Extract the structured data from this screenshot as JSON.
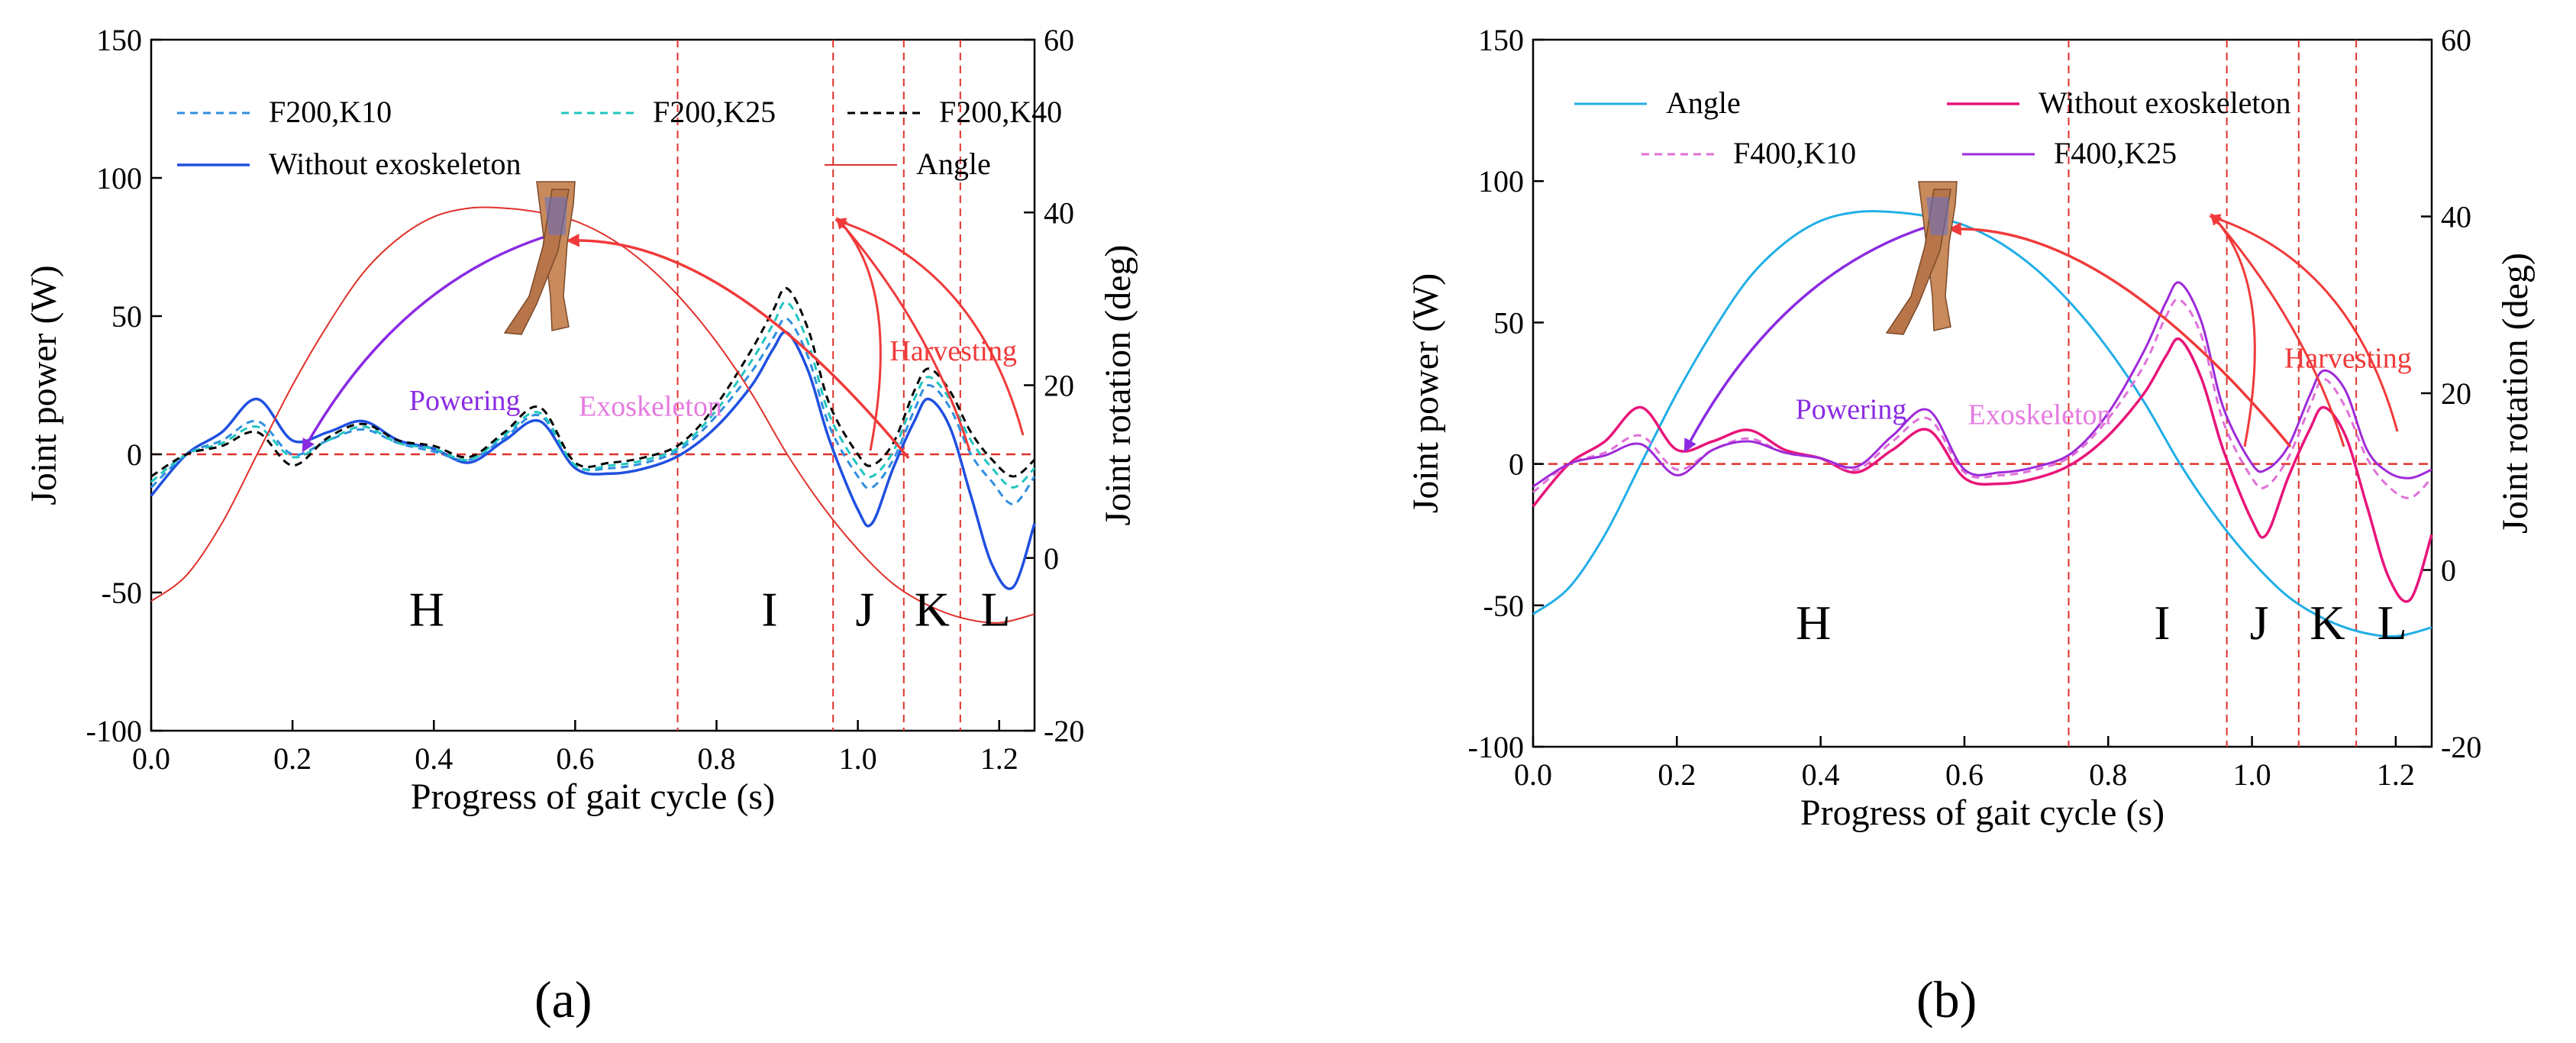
{
  "colors": {
    "ref_line": "#e0312b",
    "phase_line": "#e0312b",
    "harvest": "#f03a3a",
    "power": "#8a2be2",
    "exo_label": "#e57be0",
    "axis": "#000000"
  },
  "chart_data": [
    {
      "type": "line",
      "panel": "a",
      "panel_label": "(a)",
      "xlabel": "Progress of gait cycle (s)",
      "ylabel": "Joint power (W)",
      "ylabel_right": "Joint rotation (deg)",
      "xlim": [
        0,
        1.25
      ],
      "ylim": [
        -100,
        150
      ],
      "ylim_right": [
        -20,
        60
      ],
      "xticks": [
        0.0,
        0.2,
        0.4,
        0.6,
        0.8,
        1.0,
        1.2
      ],
      "xtick_labels": [
        "0.0",
        "0.2",
        "0.4",
        "0.6",
        "0.8",
        "1.0",
        "1.2"
      ],
      "yticks": [
        -100,
        -50,
        0,
        50,
        100,
        150
      ],
      "ytick_labels": [
        "-100",
        "-50",
        "0",
        "50",
        "100",
        "150"
      ],
      "yticks_right": [
        -20,
        0,
        20,
        40,
        60
      ],
      "ytick_labels_right": [
        "-20",
        "0",
        "20",
        "40",
        "60"
      ],
      "phase_lines": [
        0.745,
        0.965,
        1.065,
        1.145
      ],
      "phases": [
        {
          "label": "H",
          "x": 0.39,
          "y": -62
        },
        {
          "label": "I",
          "x": 0.875,
          "y": -62
        },
        {
          "label": "J",
          "x": 1.01,
          "y": -62
        },
        {
          "label": "K",
          "x": 1.105,
          "y": -62
        },
        {
          "label": "L",
          "x": 1.195,
          "y": -62
        }
      ],
      "annotations": [
        {
          "text": "Harvesting",
          "x": 1.045,
          "y": 34,
          "color": "#f03a3a"
        },
        {
          "text": "Powering",
          "x": 0.365,
          "y": 16,
          "color": "#8a2be2"
        },
        {
          "text": "Exoskeleton",
          "x": 0.605,
          "y": 14,
          "color": "#e57be0"
        }
      ],
      "legend": [
        {
          "name": "F200,K10",
          "color": "#2f8fe0",
          "dash": "10,7",
          "width": 3
        },
        {
          "name": "F200,K25",
          "color": "#20c5c0",
          "dash": "10,7",
          "width": 3
        },
        {
          "name": "F200,K40",
          "color": "#000000",
          "dash": "10,7",
          "width": 3
        },
        {
          "name": "Without exoskeleton",
          "color": "#2050e0",
          "dash": "",
          "width": 3.5
        },
        {
          "name": "Angle",
          "color": "#e0312b",
          "dash": "",
          "width": 2
        }
      ],
      "series": [
        {
          "name": "Without exoskeleton",
          "axis": "left",
          "color": "#2050e0",
          "dash": "",
          "width": 3.5,
          "x": [
            0,
            0.05,
            0.1,
            0.15,
            0.2,
            0.25,
            0.3,
            0.35,
            0.4,
            0.45,
            0.5,
            0.55,
            0.6,
            0.65,
            0.7,
            0.75,
            0.8,
            0.85,
            0.88,
            0.9,
            0.93,
            0.96,
            1.0,
            1.02,
            1.05,
            1.08,
            1.1,
            1.13,
            1.16,
            1.19,
            1.22,
            1.25
          ],
          "y": [
            -15,
            0,
            8,
            20,
            5,
            8,
            12,
            5,
            2,
            -3,
            5,
            12,
            -5,
            -7,
            -5,
            0,
            10,
            25,
            38,
            44,
            30,
            5,
            -20,
            -25,
            -5,
            12,
            20,
            10,
            -15,
            -40,
            -48,
            -25
          ]
        },
        {
          "name": "F200,K10",
          "axis": "left",
          "color": "#2f8fe0",
          "dash": "10,7",
          "width": 3,
          "x": [
            0,
            0.05,
            0.1,
            0.15,
            0.2,
            0.25,
            0.3,
            0.35,
            0.4,
            0.45,
            0.5,
            0.55,
            0.6,
            0.65,
            0.7,
            0.75,
            0.8,
            0.85,
            0.88,
            0.9,
            0.93,
            0.96,
            1.0,
            1.02,
            1.05,
            1.08,
            1.1,
            1.13,
            1.16,
            1.19,
            1.22,
            1.25
          ],
          "y": [
            -12,
            0,
            5,
            12,
            0,
            5,
            9,
            4,
            1,
            -2,
            6,
            14,
            -4,
            -5,
            -3,
            2,
            14,
            30,
            42,
            49,
            35,
            10,
            -8,
            -12,
            -2,
            16,
            25,
            17,
            0,
            -10,
            -18,
            -8
          ]
        },
        {
          "name": "F200,K25",
          "axis": "left",
          "color": "#20c5c0",
          "dash": "10,7",
          "width": 3,
          "x": [
            0,
            0.05,
            0.1,
            0.15,
            0.2,
            0.25,
            0.3,
            0.35,
            0.4,
            0.45,
            0.5,
            0.55,
            0.6,
            0.65,
            0.7,
            0.75,
            0.8,
            0.85,
            0.88,
            0.9,
            0.93,
            0.96,
            1.0,
            1.02,
            1.05,
            1.08,
            1.1,
            1.13,
            1.16,
            1.19,
            1.22,
            1.25
          ],
          "y": [
            -10,
            0,
            4,
            10,
            -1,
            5,
            10,
            4,
            2,
            -2,
            7,
            15,
            -4,
            -4,
            -2,
            3,
            16,
            34,
            47,
            55,
            40,
            14,
            -4,
            -8,
            1,
            20,
            28,
            20,
            5,
            -5,
            -12,
            -5
          ]
        },
        {
          "name": "F200,K40",
          "axis": "left",
          "color": "#000000",
          "dash": "10,7",
          "width": 3,
          "x": [
            0,
            0.05,
            0.1,
            0.15,
            0.2,
            0.25,
            0.3,
            0.35,
            0.4,
            0.45,
            0.5,
            0.55,
            0.6,
            0.65,
            0.7,
            0.75,
            0.8,
            0.85,
            0.88,
            0.9,
            0.93,
            0.96,
            1.0,
            1.02,
            1.05,
            1.08,
            1.1,
            1.13,
            1.16,
            1.19,
            1.22,
            1.25
          ],
          "y": [
            -8,
            0,
            3,
            8,
            -4,
            6,
            11,
            5,
            3,
            -1,
            8,
            17,
            -3,
            -3,
            -1,
            4,
            18,
            38,
            52,
            60,
            45,
            18,
            0,
            -4,
            4,
            23,
            31,
            23,
            8,
            -2,
            -8,
            -2
          ]
        },
        {
          "name": "Angle",
          "axis": "right",
          "color": "#e0312b",
          "dash": "",
          "width": 2,
          "x": [
            0,
            0.05,
            0.1,
            0.15,
            0.2,
            0.25,
            0.3,
            0.35,
            0.4,
            0.45,
            0.5,
            0.55,
            0.6,
            0.65,
            0.7,
            0.75,
            0.8,
            0.85,
            0.9,
            0.95,
            1.0,
            1.05,
            1.1,
            1.15,
            1.2,
            1.25
          ],
          "y": [
            -5,
            -2,
            4,
            12,
            20,
            27,
            33,
            37,
            39.5,
            40.5,
            40.5,
            40,
            39,
            37,
            34,
            30,
            25,
            19,
            12,
            6,
            1,
            -3,
            -5.5,
            -7,
            -7.5,
            -6.5
          ]
        }
      ]
    },
    {
      "type": "line",
      "panel": "b",
      "panel_label": "(b)",
      "xlabel": "Progress of gait cycle (s)",
      "ylabel": "Joint power (W)",
      "ylabel_right": "Joint rotation (deg)",
      "xlim": [
        0,
        1.25
      ],
      "ylim": [
        -100,
        150
      ],
      "ylim_right": [
        -20,
        60
      ],
      "xticks": [
        0.0,
        0.2,
        0.4,
        0.6,
        0.8,
        1.0,
        1.2
      ],
      "xtick_labels": [
        "0.0",
        "0.2",
        "0.4",
        "0.6",
        "0.8",
        "1.0",
        "1.2"
      ],
      "yticks": [
        -100,
        -50,
        0,
        50,
        100,
        150
      ],
      "ytick_labels": [
        "-100",
        "-50",
        "0",
        "50",
        "100",
        "150"
      ],
      "yticks_right": [
        -20,
        0,
        20,
        40,
        60
      ],
      "ytick_labels_right": [
        "-20",
        "0",
        "20",
        "40",
        "60"
      ],
      "phase_lines": [
        0.745,
        0.965,
        1.065,
        1.145
      ],
      "phases": [
        {
          "label": "H",
          "x": 0.39,
          "y": -62
        },
        {
          "label": "I",
          "x": 0.875,
          "y": -62
        },
        {
          "label": "J",
          "x": 1.01,
          "y": -62
        },
        {
          "label": "K",
          "x": 1.105,
          "y": -62
        },
        {
          "label": "L",
          "x": 1.195,
          "y": -62
        }
      ],
      "annotations": [
        {
          "text": "Harvesting",
          "x": 1.045,
          "y": 34,
          "color": "#f03a3a"
        },
        {
          "text": "Powering",
          "x": 0.365,
          "y": 16,
          "color": "#8a2be2"
        },
        {
          "text": "Exoskeleton",
          "x": 0.605,
          "y": 14,
          "color": "#e57be0"
        }
      ],
      "legend": [
        {
          "name": "Angle",
          "color": "#21aee6",
          "dash": "",
          "width": 3
        },
        {
          "name": "Without exoskeleton",
          "color": "#e8157a",
          "dash": "",
          "width": 3.5
        },
        {
          "name": "F400,K10",
          "color": "#e070d8",
          "dash": "10,7",
          "width": 3
        },
        {
          "name": "F400,K25",
          "color": "#9e2ad8",
          "dash": "",
          "width": 3
        }
      ],
      "series": [
        {
          "name": "Angle",
          "axis": "right",
          "color": "#21aee6",
          "dash": "",
          "width": 3,
          "x": [
            0,
            0.05,
            0.1,
            0.15,
            0.2,
            0.25,
            0.3,
            0.35,
            0.4,
            0.45,
            0.5,
            0.55,
            0.6,
            0.65,
            0.7,
            0.75,
            0.8,
            0.85,
            0.9,
            0.95,
            1.0,
            1.05,
            1.1,
            1.15,
            1.2,
            1.25
          ],
          "y": [
            -5,
            -2,
            4,
            12,
            20,
            27,
            33,
            37,
            39.5,
            40.5,
            40.5,
            40,
            39,
            37,
            34,
            30,
            25,
            19,
            12,
            6,
            1,
            -3,
            -5.5,
            -7,
            -7.5,
            -6.5
          ]
        },
        {
          "name": "Without exoskeleton",
          "axis": "left",
          "color": "#e8157a",
          "dash": "",
          "width": 3.5,
          "x": [
            0,
            0.05,
            0.1,
            0.15,
            0.2,
            0.25,
            0.3,
            0.35,
            0.4,
            0.45,
            0.5,
            0.55,
            0.6,
            0.65,
            0.7,
            0.75,
            0.8,
            0.85,
            0.88,
            0.9,
            0.93,
            0.96,
            1.0,
            1.02,
            1.05,
            1.08,
            1.1,
            1.13,
            1.16,
            1.19,
            1.22,
            1.25
          ],
          "y": [
            -15,
            0,
            8,
            20,
            5,
            8,
            12,
            5,
            2,
            -3,
            5,
            12,
            -5,
            -7,
            -5,
            0,
            10,
            25,
            38,
            44,
            30,
            5,
            -20,
            -25,
            -5,
            12,
            20,
            10,
            -15,
            -40,
            -48,
            -25
          ]
        },
        {
          "name": "F400,K10",
          "axis": "left",
          "color": "#e070d8",
          "dash": "10,7",
          "width": 3,
          "x": [
            0,
            0.05,
            0.1,
            0.15,
            0.2,
            0.25,
            0.3,
            0.35,
            0.4,
            0.45,
            0.5,
            0.55,
            0.6,
            0.65,
            0.7,
            0.75,
            0.8,
            0.85,
            0.88,
            0.9,
            0.93,
            0.96,
            1.0,
            1.02,
            1.05,
            1.08,
            1.1,
            1.13,
            1.16,
            1.19,
            1.22,
            1.25
          ],
          "y": [
            -10,
            0,
            4,
            10,
            -2,
            5,
            9,
            4,
            2,
            -2,
            8,
            16,
            -3,
            -4,
            -2,
            3,
            16,
            35,
            52,
            58,
            45,
            15,
            -5,
            -8,
            2,
            20,
            30,
            20,
            2,
            -8,
            -12,
            -5
          ]
        },
        {
          "name": "F400,K25",
          "axis": "left",
          "color": "#9e2ad8",
          "dash": "",
          "width": 3,
          "x": [
            0,
            0.05,
            0.1,
            0.15,
            0.2,
            0.25,
            0.3,
            0.35,
            0.4,
            0.45,
            0.5,
            0.55,
            0.6,
            0.65,
            0.7,
            0.75,
            0.8,
            0.85,
            0.88,
            0.9,
            0.93,
            0.96,
            1.0,
            1.02,
            1.05,
            1.08,
            1.1,
            1.13,
            1.16,
            1.19,
            1.22,
            1.25
          ],
          "y": [
            -8,
            0,
            3,
            7,
            -4,
            5,
            8,
            4,
            2,
            -1,
            10,
            19,
            -2,
            -3,
            -1,
            4,
            18,
            40,
            57,
            64,
            50,
            20,
            0,
            -2,
            6,
            24,
            33,
            26,
            5,
            -3,
            -5,
            -2
          ]
        }
      ]
    }
  ]
}
